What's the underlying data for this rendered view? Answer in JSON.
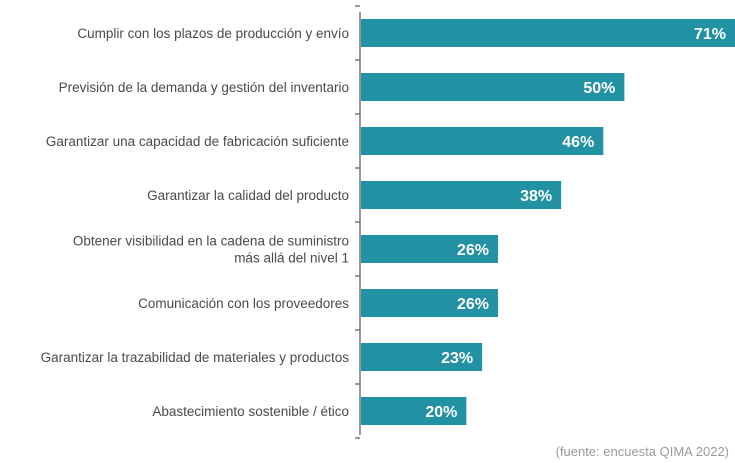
{
  "chart_data": {
    "type": "bar",
    "orientation": "horizontal",
    "categories": [
      [
        "Cumplir con los plazos de producción y envío"
      ],
      [
        "Previsión de la demanda y gestión del inventario"
      ],
      [
        "Garantizar una capacidad de fabricación suficiente"
      ],
      [
        "Garantizar la calidad del producto"
      ],
      [
        "Obtener visibilidad en la cadena de suministro",
        "más allá del nivel 1"
      ],
      [
        "Comunicación con los proveedores"
      ],
      [
        "Garantizar la trazabilidad de materiales y productos"
      ],
      [
        "Abastecimiento sostenible / ético"
      ]
    ],
    "values": [
      71,
      50,
      46,
      38,
      26,
      26,
      23,
      20
    ],
    "value_labels": [
      "71%",
      "50%",
      "46%",
      "38%",
      "26%",
      "26%",
      "23%",
      "20%"
    ],
    "xlim": [
      0,
      71
    ],
    "bar_color": "#2291a3",
    "grid": false
  },
  "source": "(fuente: encuesta QIMA 2022)"
}
